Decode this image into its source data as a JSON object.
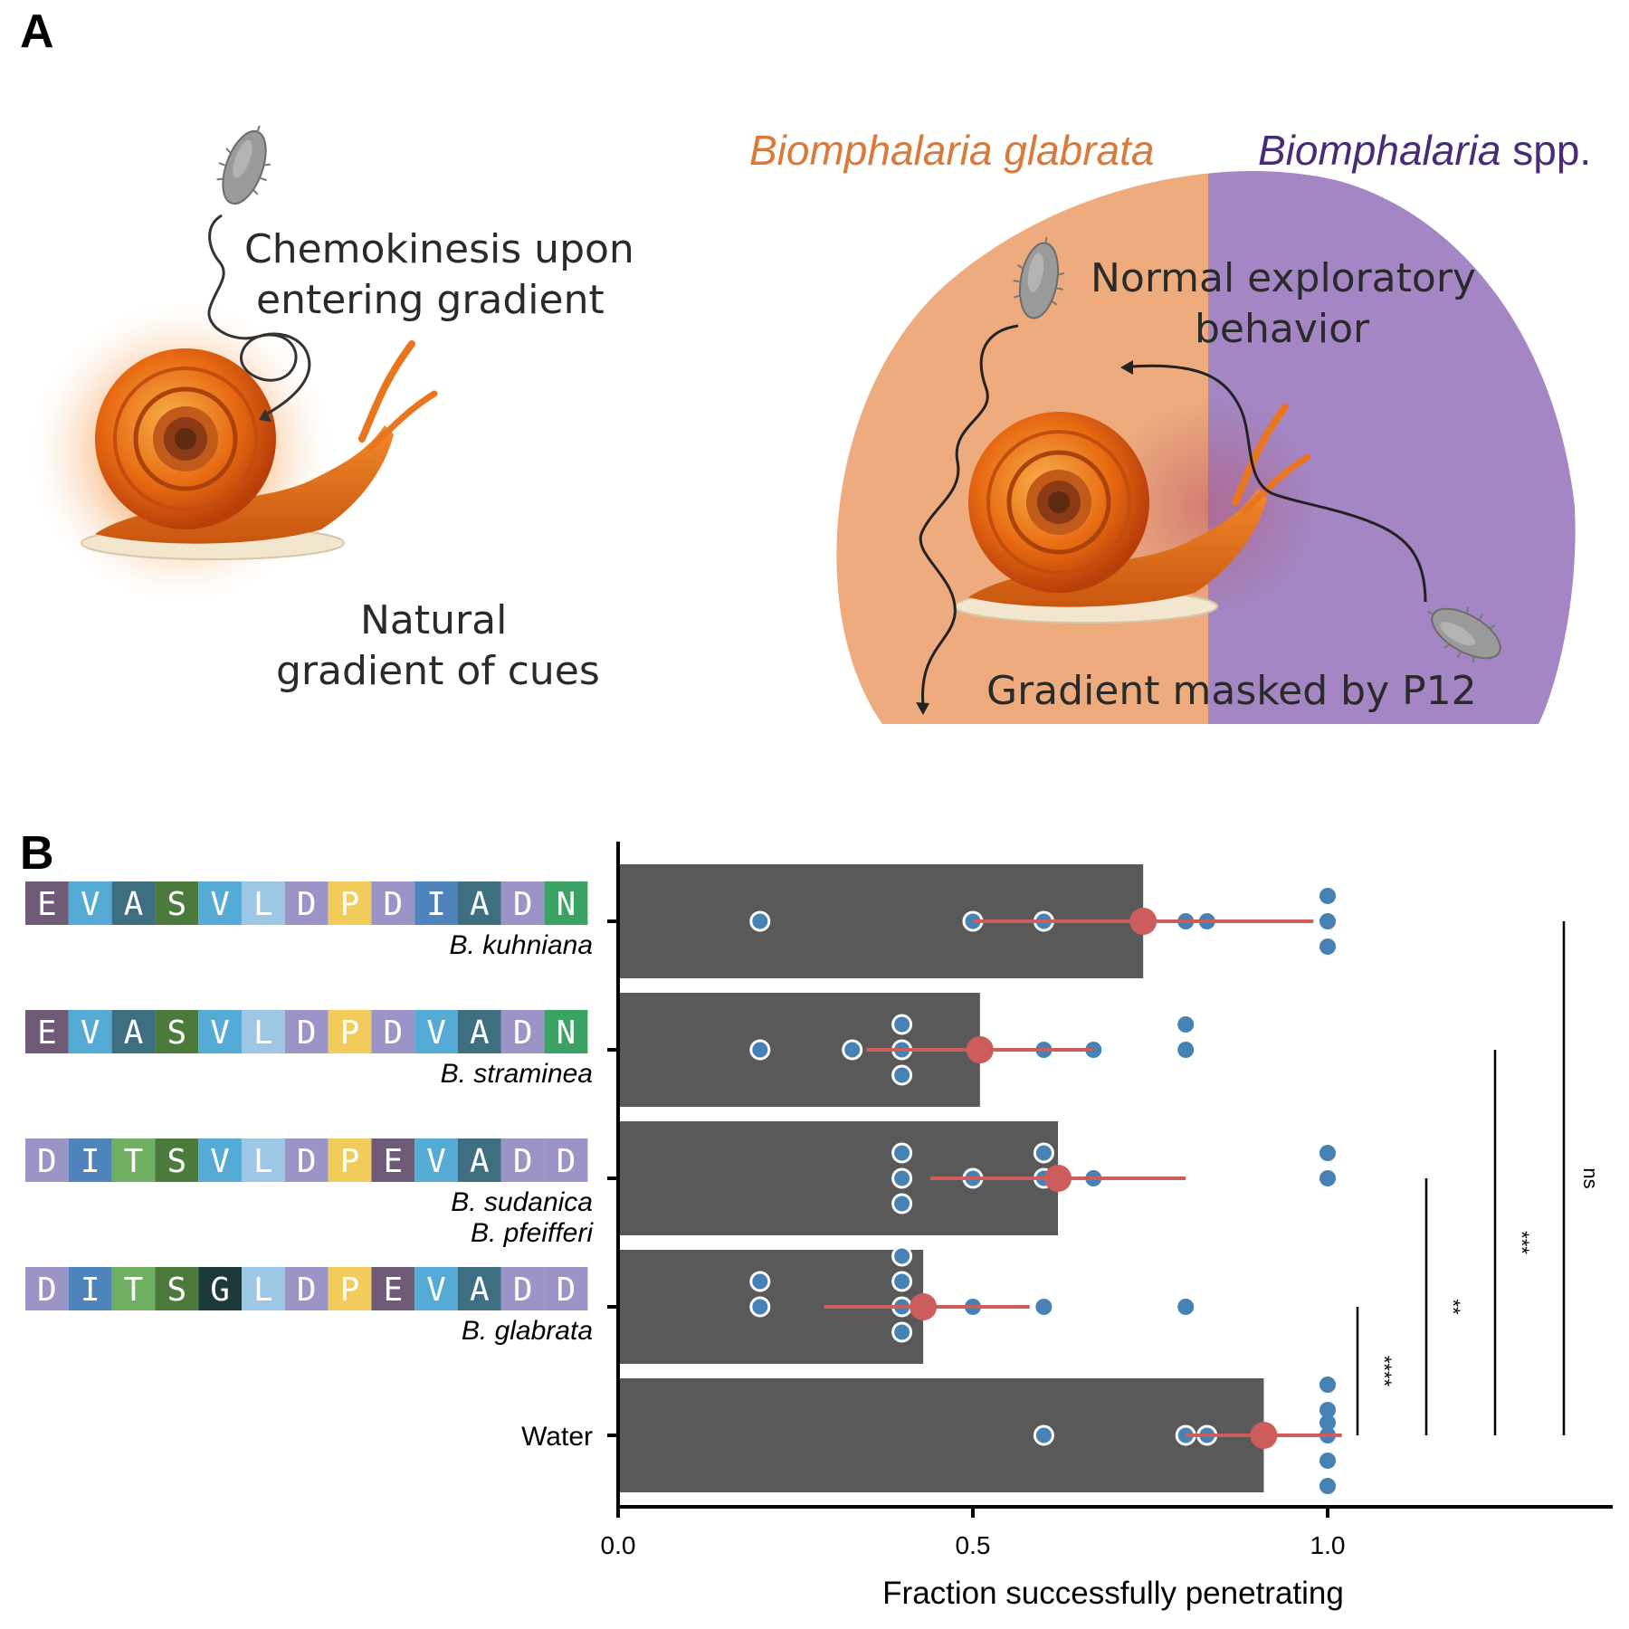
{
  "panel_a": {
    "letter": "A",
    "left": {
      "chemokinesis_line1": "Chemokinesis upon",
      "chemokinesis_line2": "entering gradient",
      "natural_line1": "Natural",
      "natural_line2": "gradient of cues"
    },
    "right": {
      "species_left": "Biomphalaria glabrata",
      "species_right_italic": "Biomphalaria",
      "species_right_plain": " spp.",
      "normal_line1": "Normal exploratory",
      "normal_line2": "behavior",
      "masked": "Gradient masked by P12"
    },
    "colors": {
      "glabrata_fill": "#eeac7e",
      "spp_fill": "#a386c3",
      "glabrata_text": "#d9793a",
      "spp_text": "#4a2a78"
    }
  },
  "panel_b": {
    "letter": "B",
    "aa_colors": {
      "E": "#6f5a78",
      "V": "#55aad6",
      "A": "#3e6f80",
      "S": "#4c7a3c",
      "L": "#9ec6e5",
      "D": "#9b94c6",
      "P": "#f1cc5b",
      "I": "#4f83bc",
      "N": "#3aa263",
      "T": "#6fb063",
      "G": "#1d3a3a"
    },
    "sequences": [
      {
        "residues": [
          "E",
          "V",
          "A",
          "S",
          "V",
          "L",
          "D",
          "P",
          "D",
          "I",
          "A",
          "D",
          "N"
        ],
        "labels": [
          "B. kuhniana"
        ]
      },
      {
        "residues": [
          "E",
          "V",
          "A",
          "S",
          "V",
          "L",
          "D",
          "P",
          "D",
          "V",
          "A",
          "D",
          "N"
        ],
        "labels": [
          "B. straminea"
        ]
      },
      {
        "residues": [
          "D",
          "I",
          "T",
          "S",
          "V",
          "L",
          "D",
          "P",
          "E",
          "V",
          "A",
          "D",
          "D"
        ],
        "labels": [
          "B. sudanica",
          "B. pfeifferi"
        ]
      },
      {
        "residues": [
          "D",
          "I",
          "T",
          "S",
          "G",
          "L",
          "D",
          "P",
          "E",
          "V",
          "A",
          "D",
          "D"
        ],
        "labels": [
          "B. glabrata"
        ]
      }
    ],
    "water_label": "Water",
    "significance": [
      "****",
      "**",
      "***",
      "ns"
    ]
  },
  "chart_data": {
    "type": "bar",
    "orientation": "horizontal",
    "categories": [
      "B. kuhniana",
      "B. straminea",
      "B. sudanica / B. pfeifferi",
      "B. glabrata",
      "Water"
    ],
    "values": [
      0.74,
      0.51,
      0.62,
      0.43,
      0.91
    ],
    "error": [
      [
        0.5,
        0.98
      ],
      [
        0.35,
        0.67
      ],
      [
        0.44,
        0.8
      ],
      [
        0.29,
        0.58
      ],
      [
        0.8,
        1.02
      ]
    ],
    "points": [
      [
        0.2,
        0.5,
        0.6,
        0.8,
        0.83,
        1.0,
        1.0,
        1.0
      ],
      [
        0.2,
        0.33,
        0.4,
        0.4,
        0.4,
        0.6,
        0.67,
        0.8,
        0.8
      ],
      [
        0.4,
        0.4,
        0.4,
        0.5,
        0.6,
        0.6,
        0.67,
        1.0,
        1.0
      ],
      [
        0.2,
        0.2,
        0.4,
        0.4,
        0.4,
        0.4,
        0.5,
        0.6,
        0.8
      ],
      [
        0.6,
        0.8,
        0.83,
        1.0,
        1.0,
        1.0,
        1.0,
        1.0,
        1.0
      ]
    ],
    "xlabel": "Fraction successfully penetrating",
    "xlim": [
      0.0,
      1.4
    ],
    "xticks": [
      "0.0",
      "0.5",
      "1.0"
    ],
    "xtick_values": [
      0.0,
      0.5,
      1.0
    ],
    "colors": {
      "bar": "#595959",
      "point": "#4682b4",
      "mean": "#cd5c5c"
    }
  }
}
